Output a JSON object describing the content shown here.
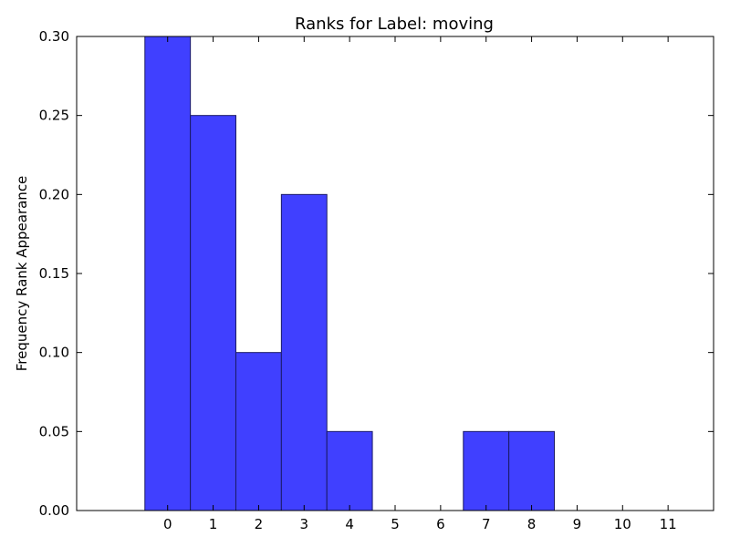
{
  "chart_data": {
    "type": "bar",
    "title": "Ranks for Label: moving",
    "xlabel": "",
    "ylabel": "Frequency Rank Appearance",
    "categories": [
      "0",
      "1",
      "2",
      "3",
      "4",
      "5",
      "6",
      "7",
      "8",
      "9",
      "10",
      "11"
    ],
    "values": [
      0.3,
      0.25,
      0.1,
      0.2,
      0.05,
      0.0,
      0.0,
      0.05,
      0.05,
      0.0,
      0.0,
      0.0
    ],
    "xlim": [
      -2,
      12
    ],
    "ylim": [
      0,
      0.3
    ],
    "yticks": [
      "0.00",
      "0.05",
      "0.10",
      "0.15",
      "0.20",
      "0.25",
      "0.30"
    ],
    "grid": false,
    "legend": "none",
    "bar_color": "#4040ff",
    "edge_color": "#1a1a66"
  }
}
